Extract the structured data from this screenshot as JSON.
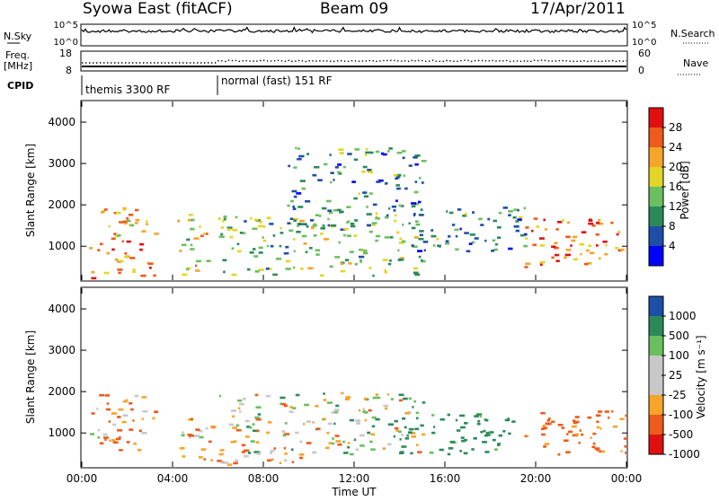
{
  "header": {
    "station": "Syowa East (fitACF)",
    "beam": "Beam 09",
    "date": "17/Apr/2011"
  },
  "top_panels": {
    "nsky_label": "N.Sky",
    "nsky_ticks": [
      "10^5",
      "10^0"
    ],
    "nsearch_label": "N.Search",
    "nsearch_ticks": [
      "10^5",
      "10^0"
    ],
    "freq_label": "Freq.",
    "freq_unit": "[MHz]",
    "freq_ticks": [
      "18",
      "8"
    ],
    "nave_label": "Nave",
    "nave_ticks": [
      "60",
      "0"
    ],
    "cpid_label": "CPID",
    "cpid_segments": [
      {
        "label": "themis 3300 RF",
        "start_hour": 0
      },
      {
        "label": "normal (fast) 151 RF",
        "start_hour": 6
      }
    ]
  },
  "colors": {
    "power_scale": [
      "#0000ff",
      "#1e4fa8",
      "#2c8a5a",
      "#6bbf5f",
      "#e3d428",
      "#f4a52a",
      "#ee5b1c",
      "#e01010"
    ],
    "velocity_scale": [
      "#e01010",
      "#ee5b1c",
      "#f4a52a",
      "#c8c8c8",
      "#c8c8c8",
      "#6bbf5f",
      "#2c8a5a",
      "#1e4fa8"
    ]
  },
  "chart_data": [
    {
      "type": "heatmap",
      "name": "power",
      "xlabel": "",
      "ylabel": "Slant Range [km]",
      "x_range_hours": [
        0,
        24
      ],
      "ylim": [
        180,
        4500
      ],
      "y_ticks": [
        1000,
        2000,
        3000,
        4000
      ],
      "colorbar_label": "Power [dB]",
      "colorbar_ticks": [
        4,
        8,
        12,
        16,
        20,
        24,
        28
      ],
      "colorbar_range": [
        0,
        32
      ],
      "features": [
        {
          "hours": [
            0.3,
            3.2
          ],
          "range_km": [
            250,
            2000
          ],
          "value": 20
        },
        {
          "hours": [
            4.2,
            5.5
          ],
          "range_km": [
            300,
            1800
          ],
          "value": 16
        },
        {
          "hours": [
            6.0,
            15.0
          ],
          "range_km": [
            300,
            1800
          ],
          "value": 12
        },
        {
          "hours": [
            9.0,
            15.0
          ],
          "range_km": [
            1500,
            3400
          ],
          "value": 8
        },
        {
          "hours": [
            14.5,
            19.5
          ],
          "range_km": [
            900,
            2000
          ],
          "value": 8
        },
        {
          "hours": [
            19.5,
            24
          ],
          "range_km": [
            500,
            1700
          ],
          "value": 22
        }
      ]
    },
    {
      "type": "heatmap",
      "name": "velocity",
      "xlabel": "Time UT",
      "ylabel": "Slant Range [km]",
      "x_range_hours": [
        0,
        24
      ],
      "ylim": [
        180,
        4500
      ],
      "y_ticks": [
        1000,
        2000,
        3000,
        4000
      ],
      "x_ticks": [
        "00:00",
        "04:00",
        "08:00",
        "12:00",
        "16:00",
        "20:00",
        "00:00"
      ],
      "colorbar_label": "Velocity [m s⁻¹]",
      "colorbar_ticks": [
        "1000",
        "500",
        "100",
        "25",
        "-25",
        "-100",
        "-500",
        "-1000"
      ],
      "features": [
        {
          "hours": [
            0.3,
            3.2
          ],
          "range_km": [
            600,
            2000
          ],
          "value": -100
        },
        {
          "hours": [
            4.2,
            6.0
          ],
          "range_km": [
            300,
            1400
          ],
          "value": -100
        },
        {
          "hours": [
            6.0,
            15.0
          ],
          "range_km": [
            500,
            2000
          ],
          "value": 0
        },
        {
          "hours": [
            6.0,
            10.0
          ],
          "range_km": [
            250,
            600
          ],
          "value": -100
        },
        {
          "hours": [
            13.5,
            19.0
          ],
          "range_km": [
            500,
            1500
          ],
          "value": 200
        },
        {
          "hours": [
            19.5,
            24
          ],
          "range_km": [
            500,
            1600
          ],
          "value": -200
        }
      ]
    }
  ]
}
